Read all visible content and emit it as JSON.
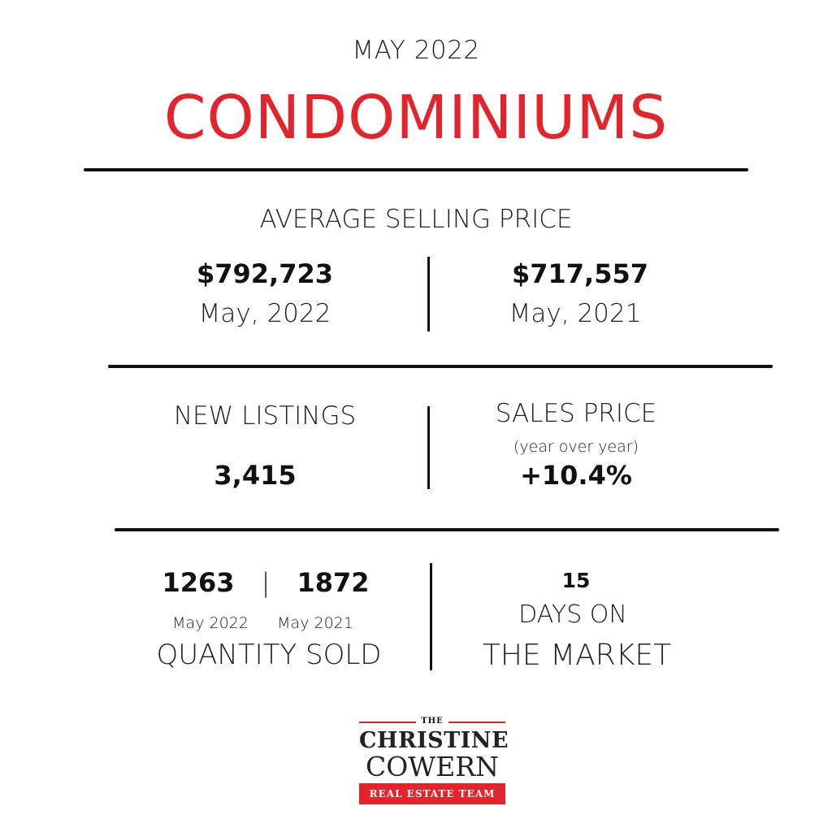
{
  "header": {
    "month": "MAY 2022",
    "title": "CONDOMINIUMS"
  },
  "average_selling_price": {
    "title": "AVERAGE SELLING PRICE",
    "current": {
      "value": "$792,723",
      "period": "May, 2022"
    },
    "previous": {
      "value": "$717,557",
      "period": "May, 2021"
    }
  },
  "new_listings": {
    "title": "NEW LISTINGS",
    "value": "3,415"
  },
  "sales_price": {
    "title": "SALES PRICE",
    "subtitle": "(year over year)",
    "value": "+10.4%"
  },
  "quantity_sold": {
    "current": {
      "value": "1263",
      "period": "May 2022"
    },
    "separator": "|",
    "previous": {
      "value": "1872",
      "period": "May 2021"
    },
    "title": "QUANTITY SOLD"
  },
  "days_on_market": {
    "value": "15",
    "line1": "DAYS ON",
    "line2": "THE MARKET"
  },
  "logo": {
    "the": "THE",
    "line1": "CHRISTINE",
    "line2": "COWERN",
    "badge": "REAL ESTATE TEAM"
  },
  "colors": {
    "accent": "#e3242b",
    "text": "#111111",
    "background": "#ffffff"
  }
}
